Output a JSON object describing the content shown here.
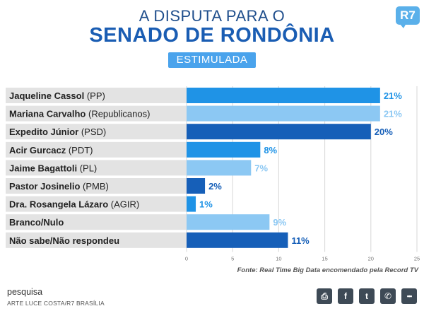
{
  "header": {
    "line1": "A DISPUTA PARA O",
    "line2": "SENADO DE RONDÔNIA",
    "badge": "ESTIMULADA",
    "logo": "R7"
  },
  "chart_data": {
    "type": "bar",
    "orientation": "horizontal",
    "title": "A DISPUTA PARA O SENADO DE RONDÔNIA",
    "subtitle": "ESTIMULADA",
    "rows": [
      {
        "name": "Jaqueline Cassol",
        "party": "(PP)",
        "value": 21,
        "label": "21%",
        "color": "#1f93e6"
      },
      {
        "name": "Mariana Carvalho",
        "party": "(Republicanos)",
        "value": 21,
        "label": "21%",
        "color": "#8cc8f3"
      },
      {
        "name": "Expedito Júnior",
        "party": "(PSD)",
        "value": 20,
        "label": "20%",
        "color": "#165fb8"
      },
      {
        "name": "Acir Gurcacz",
        "party": "(PDT)",
        "value": 8,
        "label": "8%",
        "color": "#1f93e6"
      },
      {
        "name": "Jaime Bagattoli",
        "party": "(PL)",
        "value": 7,
        "label": "7%",
        "color": "#8cc8f3"
      },
      {
        "name": "Pastor Josinelio",
        "party": "(PMB)",
        "value": 2,
        "label": "2%",
        "color": "#165fb8"
      },
      {
        "name": "Dra. Rosangela Lázaro",
        "party": "(AGIR)",
        "value": 1,
        "label": "1%",
        "color": "#1f93e6"
      },
      {
        "name": "Branco/Nulo",
        "party": "",
        "value": 9,
        "label": "9%",
        "color": "#8cc8f3"
      },
      {
        "name": "Não sabe/Não respondeu",
        "party": "",
        "value": 11,
        "label": "11%",
        "color": "#165fb8"
      }
    ],
    "xlim": [
      0,
      25
    ],
    "ticks": [
      "0",
      "5",
      "10",
      "15",
      "20",
      "25"
    ],
    "grid": true
  },
  "source": "Fonte: Real Time Big Data encomendado pela Record TV",
  "footer": {
    "title": "pesquisa",
    "credit": "ARTE LUCE COSTA/R7 BRASÍLIA"
  },
  "share_buttons": [
    {
      "icon": "print-icon",
      "glyph": "⎙"
    },
    {
      "icon": "facebook-icon",
      "glyph": "f"
    },
    {
      "icon": "twitter-icon",
      "glyph": "t"
    },
    {
      "icon": "whatsapp-icon",
      "glyph": "✆"
    },
    {
      "icon": "more-icon",
      "glyph": "•••"
    }
  ]
}
